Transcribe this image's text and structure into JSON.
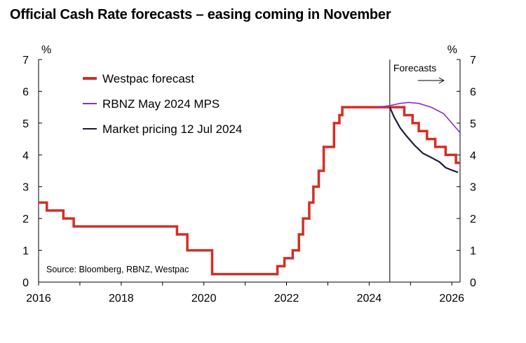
{
  "title": "Official Cash Rate forecasts – easing coming in November",
  "chart_data": {
    "type": "line",
    "title": "Official Cash Rate forecasts – easing coming in November",
    "xlabel": "",
    "ylabel_left": "%",
    "ylabel_right": "%",
    "xlim": [
      2016,
      2026.2
    ],
    "ylim": [
      0,
      7
    ],
    "x_ticks": [
      "2016",
      "2018",
      "2020",
      "2022",
      "2024",
      "2026"
    ],
    "y_ticks": [
      "0",
      "1",
      "2",
      "3",
      "4",
      "5",
      "6",
      "7"
    ],
    "grid": false,
    "legend_position": "top-left",
    "source": "Source: Bloomberg, RBNZ, Westpac",
    "forecast_divider": {
      "x": 2024.5,
      "label": "Forecasts"
    },
    "series": [
      {
        "name": "Westpac forecast",
        "color": "#d42e24",
        "step": true,
        "points": [
          [
            2016.0,
            2.5
          ],
          [
            2016.2,
            2.25
          ],
          [
            2016.6,
            2.0
          ],
          [
            2016.85,
            1.75
          ],
          [
            2019.35,
            1.5
          ],
          [
            2019.6,
            1.0
          ],
          [
            2020.2,
            0.25
          ],
          [
            2021.78,
            0.5
          ],
          [
            2021.95,
            0.75
          ],
          [
            2022.15,
            1.0
          ],
          [
            2022.3,
            1.5
          ],
          [
            2022.4,
            2.0
          ],
          [
            2022.55,
            2.5
          ],
          [
            2022.65,
            3.0
          ],
          [
            2022.78,
            3.5
          ],
          [
            2022.9,
            4.25
          ],
          [
            2023.15,
            5.0
          ],
          [
            2023.28,
            5.25
          ],
          [
            2023.35,
            5.5
          ],
          [
            2024.85,
            5.25
          ],
          [
            2025.05,
            5.0
          ],
          [
            2025.2,
            4.75
          ],
          [
            2025.4,
            4.5
          ],
          [
            2025.6,
            4.25
          ],
          [
            2025.85,
            4.0
          ],
          [
            2026.1,
            3.75
          ],
          [
            2026.2,
            3.75
          ]
        ]
      },
      {
        "name": "RBNZ May 2024 MPS",
        "color": "#8a2bd8",
        "step": false,
        "points": [
          [
            2024.2,
            5.5
          ],
          [
            2024.5,
            5.55
          ],
          [
            2024.75,
            5.62
          ],
          [
            2024.95,
            5.65
          ],
          [
            2025.2,
            5.62
          ],
          [
            2025.5,
            5.5
          ],
          [
            2025.8,
            5.3
          ],
          [
            2026.0,
            5.0
          ],
          [
            2026.2,
            4.7
          ]
        ]
      },
      {
        "name": "Market pricing 12 Jul 2024",
        "color": "#1c1a3a",
        "step": false,
        "points": [
          [
            2024.5,
            5.5
          ],
          [
            2024.6,
            5.2
          ],
          [
            2024.75,
            4.85
          ],
          [
            2024.9,
            4.6
          ],
          [
            2025.1,
            4.3
          ],
          [
            2025.3,
            4.05
          ],
          [
            2025.5,
            3.92
          ],
          [
            2025.7,
            3.78
          ],
          [
            2025.85,
            3.6
          ],
          [
            2026.0,
            3.52
          ],
          [
            2026.15,
            3.45
          ]
        ]
      }
    ]
  }
}
